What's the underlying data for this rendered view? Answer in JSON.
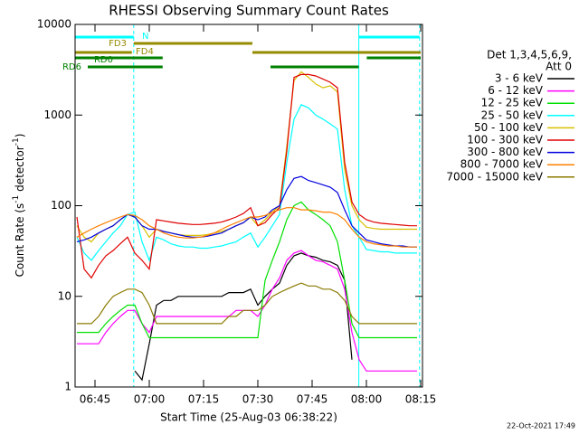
{
  "chart_data": {
    "type": "line",
    "title": "RHESSI Observing Summary Count Rates",
    "x_label": "Start Time (25-Aug-03 06:38:22)",
    "y_label": [
      "Count Rate (s",
      "-1",
      " detector",
      "-1",
      ")"
    ],
    "footer": "22-Oct-2021 17:49",
    "legend_title": [
      "Det 1,3,4,5,6,9,",
      "Att 0"
    ],
    "log_y": true,
    "ylim": [
      1,
      10000
    ],
    "yticks": [
      1,
      10,
      100,
      1000,
      10000
    ],
    "xlim": [
      399.5,
      495.5
    ],
    "xticks": [
      {
        "value": 405,
        "label": "06:45"
      },
      {
        "value": 420,
        "label": "07:00"
      },
      {
        "value": 435,
        "label": "07:15"
      },
      {
        "value": 450,
        "label": "07:30"
      },
      {
        "value": 465,
        "label": "07:45"
      },
      {
        "value": 480,
        "label": "08:00"
      },
      {
        "value": 495,
        "label": "08:15"
      }
    ],
    "x": [
      400,
      402,
      404,
      406,
      408,
      410,
      412,
      414,
      416,
      418,
      420,
      422,
      424,
      426,
      428,
      430,
      432,
      434,
      436,
      438,
      440,
      442,
      444,
      446,
      448,
      450,
      452,
      454,
      456,
      458,
      460,
      462,
      464,
      466,
      468,
      470,
      472,
      474,
      476,
      478,
      480,
      482,
      484,
      486,
      488,
      490,
      492,
      494
    ],
    "series": [
      {
        "name": "3 - 6 keV",
        "color": "#000000",
        "values": [
          null,
          null,
          null,
          null,
          null,
          null,
          null,
          null,
          1.5,
          1.2,
          3,
          8,
          9,
          9,
          10,
          10,
          10,
          10,
          10,
          10,
          10,
          11,
          11,
          11,
          12,
          8,
          10,
          12,
          14,
          22,
          28,
          30,
          28,
          27,
          25,
          24,
          22,
          15,
          2,
          null,
          null,
          null,
          null,
          null,
          null,
          null,
          null,
          null
        ]
      },
      {
        "name": "6 - 12 keV",
        "color": "#ff00ff",
        "values": [
          3,
          3,
          3,
          3,
          4,
          5,
          6,
          7,
          7,
          5,
          4,
          6,
          6,
          6,
          6,
          6,
          6,
          6,
          6,
          6,
          6,
          6,
          7,
          7,
          7,
          6,
          8,
          12,
          16,
          25,
          30,
          32,
          28,
          25,
          24,
          22,
          20,
          12,
          4,
          2,
          1.5,
          1.5,
          1.5,
          1.5,
          1.5,
          1.5,
          1.5,
          1.5
        ]
      },
      {
        "name": "12 - 25 keV",
        "color": "#00e000",
        "values": [
          4,
          4,
          4,
          4,
          5,
          6,
          7,
          8,
          8,
          5,
          3.5,
          3.5,
          3.5,
          3.5,
          3.5,
          3.5,
          3.5,
          3.5,
          3.5,
          3.5,
          3.5,
          3.5,
          3.5,
          3.5,
          3.5,
          3.5,
          15,
          25,
          40,
          70,
          100,
          110,
          90,
          80,
          70,
          60,
          40,
          15,
          5,
          3.5,
          3.5,
          3.5,
          3.5,
          3.5,
          3.5,
          3.5,
          3.5,
          3.5
        ]
      },
      {
        "name": "25 - 50 keV",
        "color": "#00ffff",
        "values": [
          45,
          30,
          25,
          32,
          40,
          50,
          60,
          80,
          85,
          40,
          25,
          45,
          42,
          38,
          36,
          35,
          35,
          34,
          34,
          35,
          36,
          38,
          40,
          45,
          50,
          35,
          45,
          60,
          80,
          300,
          900,
          1300,
          1200,
          1000,
          900,
          800,
          700,
          150,
          60,
          45,
          33,
          32,
          31,
          31,
          30,
          30,
          30,
          30
        ]
      },
      {
        "name": "50 - 100 keV",
        "color": "#d8c000",
        "values": [
          60,
          45,
          40,
          50,
          55,
          60,
          70,
          80,
          75,
          60,
          45,
          55,
          52,
          50,
          48,
          47,
          47,
          47,
          48,
          50,
          52,
          55,
          60,
          65,
          75,
          60,
          70,
          85,
          100,
          450,
          2400,
          3000,
          2600,
          2200,
          2000,
          2100,
          1800,
          250,
          100,
          70,
          58,
          56,
          55,
          55,
          55,
          55,
          55,
          55
        ]
      },
      {
        "name": "100 - 300 keV",
        "color": "#e00000",
        "values": [
          75,
          20,
          16,
          22,
          28,
          32,
          38,
          45,
          30,
          25,
          20,
          70,
          68,
          66,
          64,
          63,
          62,
          62,
          63,
          64,
          66,
          70,
          75,
          82,
          95,
          60,
          65,
          80,
          95,
          400,
          2600,
          2800,
          2800,
          2700,
          2500,
          2300,
          2000,
          300,
          110,
          80,
          70,
          66,
          64,
          63,
          62,
          61,
          60,
          60
        ]
      },
      {
        "name": "300 - 800 keV",
        "color": "#0000e0",
        "values": [
          40,
          42,
          45,
          50,
          55,
          60,
          70,
          80,
          75,
          60,
          55,
          55,
          52,
          50,
          48,
          46,
          45,
          45,
          46,
          48,
          50,
          55,
          60,
          65,
          75,
          70,
          75,
          90,
          100,
          150,
          200,
          210,
          190,
          180,
          170,
          160,
          140,
          90,
          60,
          50,
          42,
          40,
          38,
          37,
          36,
          36,
          35,
          35
        ]
      },
      {
        "name": "800 - 7000 keV",
        "color": "#ff8000",
        "values": [
          45,
          50,
          55,
          60,
          65,
          70,
          75,
          80,
          78,
          70,
          60,
          55,
          50,
          47,
          45,
          44,
          44,
          45,
          47,
          50,
          55,
          60,
          65,
          70,
          75,
          75,
          78,
          85,
          90,
          95,
          95,
          90,
          90,
          88,
          85,
          85,
          80,
          70,
          55,
          45,
          40,
          38,
          37,
          36,
          36,
          35,
          35,
          35
        ]
      },
      {
        "name": "7000 - 15000 keV",
        "color": "#8b7a00",
        "values": [
          5,
          5,
          5,
          6,
          8,
          10,
          11,
          12,
          12,
          11,
          8,
          5,
          5,
          5,
          5,
          5,
          5,
          5,
          5,
          5,
          5,
          6,
          6,
          7,
          7,
          7,
          8,
          10,
          11,
          12,
          13,
          14,
          13,
          13,
          12,
          12,
          11,
          9,
          6,
          5,
          5,
          5,
          5,
          5,
          5,
          5,
          5,
          5
        ]
      }
    ],
    "flags": [
      {
        "name": "N",
        "color": "#00ffff",
        "intervals": [
          [
            399.6,
            415.7
          ],
          [
            477.9,
            494.7
          ]
        ]
      },
      {
        "name": "FD3",
        "color": "#958b00",
        "intervals": [
          [
            415.7,
            448.5
          ]
        ]
      },
      {
        "name": "FD4",
        "color": "#958b00",
        "intervals": [
          [
            399.6,
            415.2
          ],
          [
            448.5,
            495
          ]
        ]
      },
      {
        "name": "RD0",
        "color": "#008000",
        "intervals": [
          [
            399.6,
            423.7
          ],
          [
            480.1,
            495
          ]
        ]
      },
      {
        "name": "RD6",
        "color": "#008000",
        "intervals": [
          [
            403,
            423.7
          ],
          [
            453.5,
            477.9
          ]
        ]
      }
    ],
    "night_lines": {
      "color": "#00ffff",
      "solid": [
        477.9
      ],
      "dashed": [
        415.7,
        494.7
      ]
    }
  }
}
